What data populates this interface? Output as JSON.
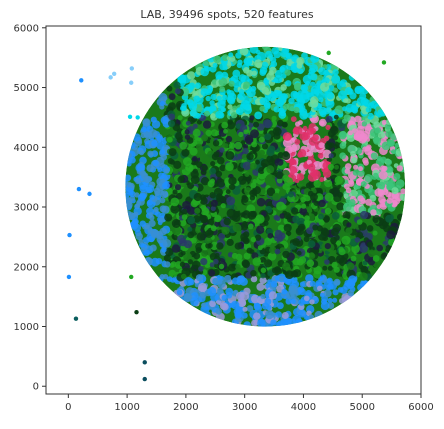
{
  "chart_data": {
    "type": "scatter",
    "title": "LAB, 39496 spots, 520 features",
    "xlabel": "",
    "ylabel": "",
    "xlim": [
      -380,
      6000
    ],
    "ylim": [
      -130,
      6030
    ],
    "x_ticks": [
      0,
      1000,
      2000,
      3000,
      4000,
      5000,
      6000
    ],
    "y_ticks": [
      0,
      1000,
      2000,
      3000,
      4000,
      5000,
      6000
    ],
    "grid": false,
    "legend": "none",
    "tissue": {
      "center": [
        3350,
        3340
      ],
      "radius": 2380,
      "colors": [
        "#0a3d14",
        "#1a7a1a",
        "#22a822",
        "#0b5e3b",
        "#00d8e8",
        "#1e90ff",
        "#3a8fd0",
        "#2a3a6a",
        "#1c1c3c",
        "#6fdc9c",
        "#3cc47a",
        "#e0306a",
        "#ee88cc",
        "#9a9adc",
        "#b0d8a8"
      ]
    },
    "outlier_points": [
      {
        "x": 220,
        "y": 5120,
        "color": "#1e90ff"
      },
      {
        "x": 720,
        "y": 5170,
        "color": "#87cefa"
      },
      {
        "x": 780,
        "y": 5230,
        "color": "#87cefa"
      },
      {
        "x": 1080,
        "y": 5320,
        "color": "#87cefa"
      },
      {
        "x": 1070,
        "y": 5080,
        "color": "#87cefa"
      },
      {
        "x": 1180,
        "y": 4500,
        "color": "#00d8e8"
      },
      {
        "x": 1050,
        "y": 4510,
        "color": "#00d8e8"
      },
      {
        "x": 180,
        "y": 3300,
        "color": "#1e90ff"
      },
      {
        "x": 360,
        "y": 3220,
        "color": "#1e90ff"
      },
      {
        "x": 20,
        "y": 2530,
        "color": "#1e90ff"
      },
      {
        "x": 10,
        "y": 1830,
        "color": "#1e90ff"
      },
      {
        "x": 130,
        "y": 1130,
        "color": "#0b5e5e"
      },
      {
        "x": 1070,
        "y": 1830,
        "color": "#22a822"
      },
      {
        "x": 1160,
        "y": 1240,
        "color": "#0a3d14"
      },
      {
        "x": 1300,
        "y": 400,
        "color": "#0b4e5e"
      },
      {
        "x": 1300,
        "y": 120,
        "color": "#0b4e5e"
      },
      {
        "x": 4430,
        "y": 5580,
        "color": "#22a822"
      },
      {
        "x": 5370,
        "y": 5420,
        "color": "#22a822"
      }
    ]
  }
}
